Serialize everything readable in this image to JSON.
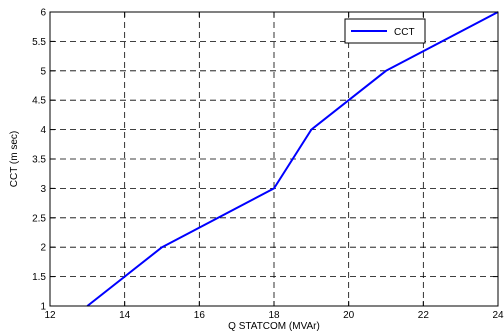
{
  "chart_data": {
    "type": "line",
    "xlabel": "Q STATCOM (MVAr)",
    "ylabel": "CCT (m sec)",
    "xlim": [
      12,
      24
    ],
    "ylim": [
      1,
      6
    ],
    "xticks": [
      12,
      14,
      16,
      18,
      20,
      22,
      24
    ],
    "yticks": [
      1,
      1.5,
      2,
      2.5,
      3,
      3.5,
      4,
      4.5,
      5,
      5.5,
      6
    ],
    "xtick_labels": [
      "12",
      "14",
      "16",
      "18",
      "20",
      "22",
      "24"
    ],
    "ytick_labels": [
      "1",
      "1.5",
      "2",
      "2.5",
      "3",
      "3.5",
      "4",
      "4.5",
      "5",
      "5.5",
      "6"
    ],
    "grid": true,
    "grid_style": "dashed",
    "legend": "top-right",
    "series": [
      {
        "name": "CCT",
        "color": "#0000ff",
        "x": [
          13,
          15,
          18,
          19,
          21,
          24
        ],
        "y": [
          1,
          2,
          3,
          4,
          5,
          6
        ]
      }
    ]
  }
}
